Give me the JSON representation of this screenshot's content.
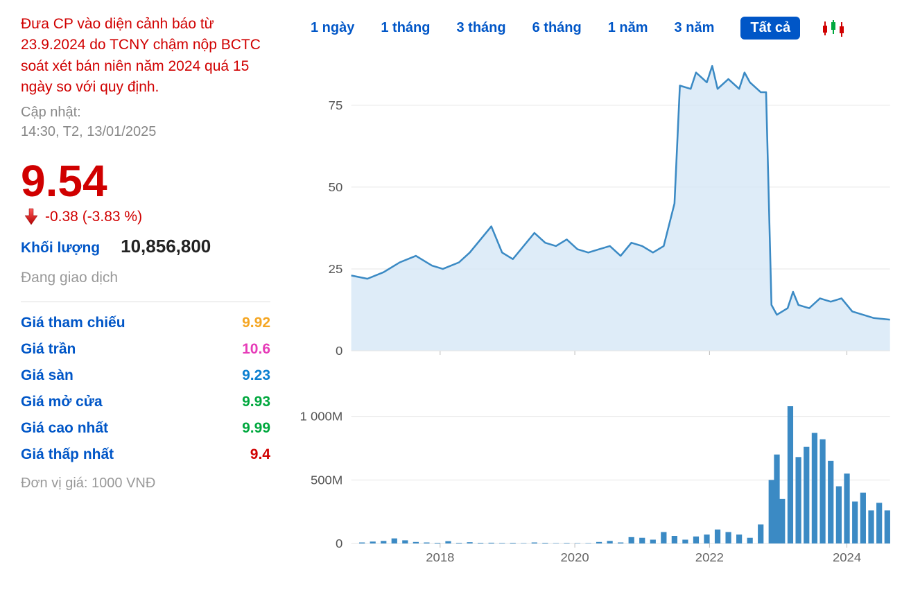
{
  "warning_text": "Đưa CP vào diện cảnh báo từ 23.9.2024 do TCNY chậm nộp BCTC soát xét bán niên năm 2024 quá 15 ngày so với quy định.",
  "updated_label": "Cập nhật:",
  "updated_time": "14:30, T2, 13/01/2025",
  "price": "9.54",
  "change": "-0.38 (-3.83 %)",
  "volume_label": "Khối lượng",
  "volume_value": "10,856,800",
  "status": "Đang giao dịch",
  "stats": [
    {
      "label": "Giá tham chiếu",
      "value": "9.92",
      "color": "#f5a623"
    },
    {
      "label": "Giá trần",
      "value": "10.6",
      "color": "#e63cb8"
    },
    {
      "label": "Giá sàn",
      "value": "9.23",
      "color": "#0a7fd0"
    },
    {
      "label": "Giá mở cửa",
      "value": "9.93",
      "color": "#00a83e"
    },
    {
      "label": "Giá cao nhất",
      "value": "9.99",
      "color": "#00a83e"
    },
    {
      "label": "Giá thấp nhất",
      "value": "9.4",
      "color": "#d00000"
    }
  ],
  "unit_text": "Đơn vị giá: 1000 VNĐ",
  "time_tabs": [
    "1 ngày",
    "1 tháng",
    "3 tháng",
    "6 tháng",
    "1 năm",
    "3 năm",
    "Tất cả"
  ],
  "active_tab_index": 6,
  "price_chart": {
    "type": "area_line",
    "line_color": "#3b8ac4",
    "fill_color": "#d3e5f5",
    "fill_opacity": 0.75,
    "grid_color": "#e6e6e6",
    "background_color": "#ffffff",
    "yticks": [
      0,
      25,
      50,
      75
    ],
    "ylim": [
      0,
      90
    ],
    "series": [
      {
        "t": 0.0,
        "v": 23
      },
      {
        "t": 0.03,
        "v": 22
      },
      {
        "t": 0.06,
        "v": 24
      },
      {
        "t": 0.09,
        "v": 27
      },
      {
        "t": 0.12,
        "v": 29
      },
      {
        "t": 0.15,
        "v": 26
      },
      {
        "t": 0.17,
        "v": 25
      },
      {
        "t": 0.2,
        "v": 27
      },
      {
        "t": 0.22,
        "v": 30
      },
      {
        "t": 0.24,
        "v": 34
      },
      {
        "t": 0.26,
        "v": 38
      },
      {
        "t": 0.28,
        "v": 30
      },
      {
        "t": 0.3,
        "v": 28
      },
      {
        "t": 0.32,
        "v": 32
      },
      {
        "t": 0.34,
        "v": 36
      },
      {
        "t": 0.36,
        "v": 33
      },
      {
        "t": 0.38,
        "v": 32
      },
      {
        "t": 0.4,
        "v": 34
      },
      {
        "t": 0.42,
        "v": 31
      },
      {
        "t": 0.44,
        "v": 30
      },
      {
        "t": 0.46,
        "v": 31
      },
      {
        "t": 0.48,
        "v": 32
      },
      {
        "t": 0.5,
        "v": 29
      },
      {
        "t": 0.52,
        "v": 33
      },
      {
        "t": 0.54,
        "v": 32
      },
      {
        "t": 0.56,
        "v": 30
      },
      {
        "t": 0.58,
        "v": 32
      },
      {
        "t": 0.6,
        "v": 45
      },
      {
        "t": 0.61,
        "v": 81
      },
      {
        "t": 0.63,
        "v": 80
      },
      {
        "t": 0.64,
        "v": 85
      },
      {
        "t": 0.66,
        "v": 82
      },
      {
        "t": 0.67,
        "v": 87
      },
      {
        "t": 0.68,
        "v": 80
      },
      {
        "t": 0.7,
        "v": 83
      },
      {
        "t": 0.72,
        "v": 80
      },
      {
        "t": 0.73,
        "v": 85
      },
      {
        "t": 0.74,
        "v": 82
      },
      {
        "t": 0.76,
        "v": 79
      },
      {
        "t": 0.77,
        "v": 79
      },
      {
        "t": 0.78,
        "v": 14
      },
      {
        "t": 0.79,
        "v": 11
      },
      {
        "t": 0.81,
        "v": 13
      },
      {
        "t": 0.82,
        "v": 18
      },
      {
        "t": 0.83,
        "v": 14
      },
      {
        "t": 0.85,
        "v": 13
      },
      {
        "t": 0.87,
        "v": 16
      },
      {
        "t": 0.89,
        "v": 15
      },
      {
        "t": 0.91,
        "v": 16
      },
      {
        "t": 0.93,
        "v": 12
      },
      {
        "t": 0.95,
        "v": 11
      },
      {
        "t": 0.97,
        "v": 10
      },
      {
        "t": 1.0,
        "v": 9.5
      }
    ]
  },
  "volume_chart": {
    "type": "bar",
    "bar_color": "#3b8ac4",
    "grid_color": "#e6e6e6",
    "yticks": [
      0,
      500,
      1000
    ],
    "ytick_labels": [
      "0",
      "500M",
      "1 000M"
    ],
    "ylim": [
      0,
      1200
    ],
    "bars": [
      {
        "t": 0.02,
        "v": 8
      },
      {
        "t": 0.04,
        "v": 15
      },
      {
        "t": 0.06,
        "v": 20
      },
      {
        "t": 0.08,
        "v": 40
      },
      {
        "t": 0.1,
        "v": 25
      },
      {
        "t": 0.12,
        "v": 12
      },
      {
        "t": 0.14,
        "v": 8
      },
      {
        "t": 0.16,
        "v": 5
      },
      {
        "t": 0.18,
        "v": 18
      },
      {
        "t": 0.2,
        "v": 5
      },
      {
        "t": 0.22,
        "v": 10
      },
      {
        "t": 0.24,
        "v": 5
      },
      {
        "t": 0.26,
        "v": 6
      },
      {
        "t": 0.28,
        "v": 4
      },
      {
        "t": 0.3,
        "v": 5
      },
      {
        "t": 0.32,
        "v": 3
      },
      {
        "t": 0.34,
        "v": 8
      },
      {
        "t": 0.36,
        "v": 5
      },
      {
        "t": 0.38,
        "v": 3
      },
      {
        "t": 0.4,
        "v": 4
      },
      {
        "t": 0.42,
        "v": 3
      },
      {
        "t": 0.44,
        "v": 3
      },
      {
        "t": 0.46,
        "v": 12
      },
      {
        "t": 0.48,
        "v": 20
      },
      {
        "t": 0.5,
        "v": 8
      },
      {
        "t": 0.52,
        "v": 50
      },
      {
        "t": 0.54,
        "v": 45
      },
      {
        "t": 0.56,
        "v": 30
      },
      {
        "t": 0.58,
        "v": 90
      },
      {
        "t": 0.6,
        "v": 60
      },
      {
        "t": 0.62,
        "v": 30
      },
      {
        "t": 0.64,
        "v": 55
      },
      {
        "t": 0.66,
        "v": 70
      },
      {
        "t": 0.68,
        "v": 110
      },
      {
        "t": 0.7,
        "v": 90
      },
      {
        "t": 0.72,
        "v": 70
      },
      {
        "t": 0.74,
        "v": 45
      },
      {
        "t": 0.76,
        "v": 150
      },
      {
        "t": 0.78,
        "v": 500
      },
      {
        "t": 0.79,
        "v": 700
      },
      {
        "t": 0.8,
        "v": 350
      },
      {
        "t": 0.815,
        "v": 1080
      },
      {
        "t": 0.83,
        "v": 680
      },
      {
        "t": 0.845,
        "v": 760
      },
      {
        "t": 0.86,
        "v": 870
      },
      {
        "t": 0.875,
        "v": 820
      },
      {
        "t": 0.89,
        "v": 650
      },
      {
        "t": 0.905,
        "v": 450
      },
      {
        "t": 0.92,
        "v": 550
      },
      {
        "t": 0.935,
        "v": 330
      },
      {
        "t": 0.95,
        "v": 400
      },
      {
        "t": 0.965,
        "v": 260
      },
      {
        "t": 0.98,
        "v": 320
      },
      {
        "t": 0.995,
        "v": 260
      }
    ]
  },
  "x_axis": {
    "years": [
      2018,
      2020,
      2022,
      2024
    ],
    "year_positions": [
      0.165,
      0.415,
      0.665,
      0.92
    ]
  }
}
